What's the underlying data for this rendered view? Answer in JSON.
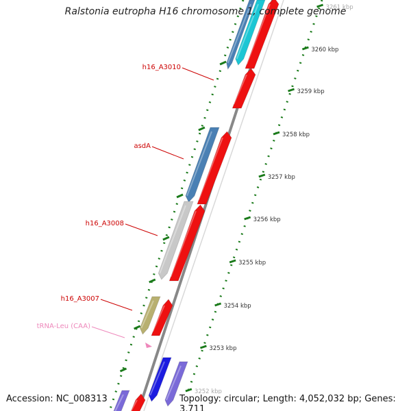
{
  "title": "Ralstonia eutropha H16 chromosome 1, complete genome",
  "footer": {
    "accession": "Accession: NC_008313",
    "summary": "Topology: circular; Length: 4,052,032 bp; Genes: 3,711"
  },
  "ticks": [
    {
      "label": "3261 kbp",
      "faded": true
    },
    {
      "label": "3260 kbp"
    },
    {
      "label": "3259 kbp"
    },
    {
      "label": "3258 kbp"
    },
    {
      "label": "3257 kbp"
    },
    {
      "label": "3256 kbp"
    },
    {
      "label": "3255 kbp"
    },
    {
      "label": "3254 kbp"
    },
    {
      "label": "3253 kbp"
    },
    {
      "label": "3252 kbp",
      "faded": true
    }
  ],
  "gene_labels": [
    {
      "name": "h16_A3010",
      "color": "#cc0000"
    },
    {
      "name": "asdA",
      "color": "#cc0000"
    },
    {
      "name": "h16_A3008",
      "color": "#cc0000"
    },
    {
      "name": "h16_A3007",
      "color": "#cc0000"
    },
    {
      "name": "tRNA-Leu (CAA)",
      "color": "#ee88bb"
    }
  ],
  "colors": {
    "cds": "#ee1111",
    "cog_steelblue": "#4a80b4",
    "cog_cyan": "#1cc6d4",
    "cog_gray": "#c8c8c8",
    "cog_olive": "#b8b070",
    "cog_blue": "#1c1ce0",
    "cog_purple": "#7a6ad8",
    "trna": "#ee88bb",
    "backbone": "#888888",
    "ticks": "#1a7a1a"
  }
}
